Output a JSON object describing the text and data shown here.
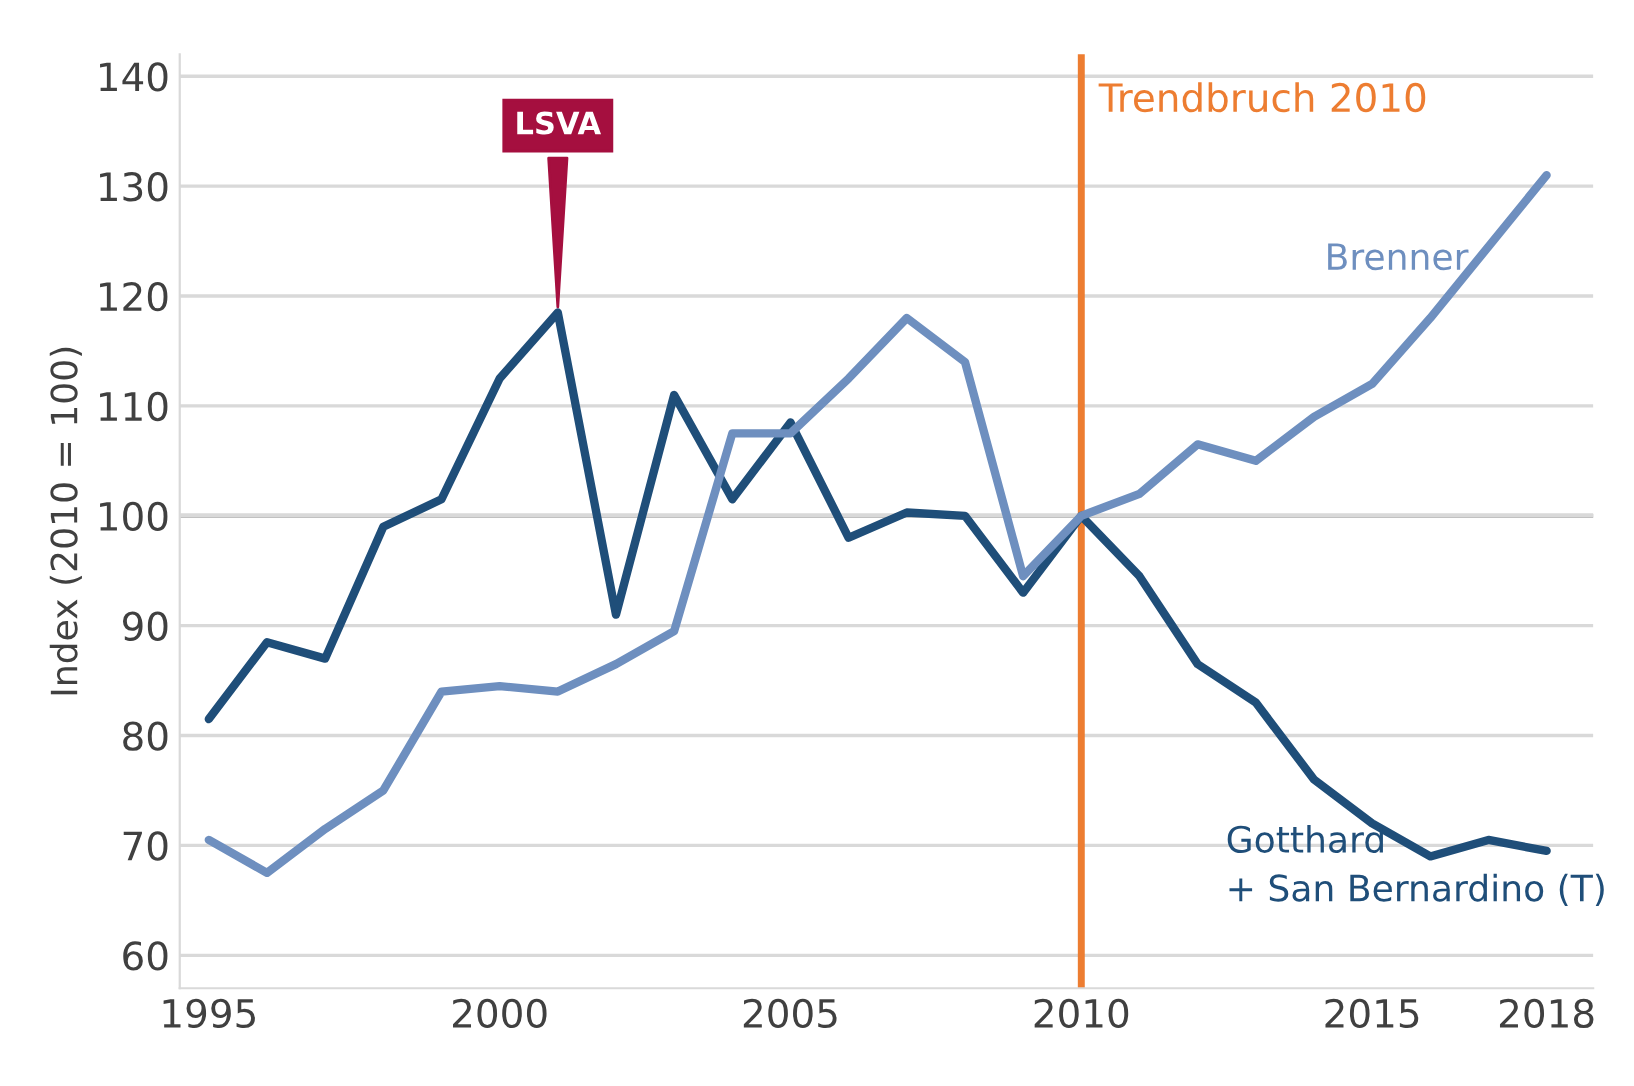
{
  "chart_data": {
    "type": "line",
    "ylabel": "Index (2010 = 100)",
    "x": [
      1995,
      1996,
      1997,
      1998,
      1999,
      2000,
      2001,
      2002,
      2003,
      2004,
      2005,
      2006,
      2007,
      2008,
      2009,
      2010,
      2011,
      2012,
      2013,
      2014,
      2015,
      2016,
      2017,
      2018
    ],
    "series": [
      {
        "name": "Gotthard\n+ San Bernardino (T)",
        "color": "#1f4e79",
        "values": [
          81.5,
          88.5,
          87,
          99,
          101.5,
          112.5,
          118.5,
          91,
          111,
          101.5,
          108.5,
          98,
          100.3,
          100,
          93,
          100,
          94.5,
          86.5,
          83,
          76,
          72,
          69,
          70.5,
          69.5
        ]
      },
      {
        "name": "Brenner",
        "color": "#6e8fbf",
        "values": [
          70.5,
          67.5,
          71.5,
          75,
          84,
          84.5,
          84,
          86.5,
          89.5,
          107.5,
          107.5,
          112.5,
          118,
          114,
          94.5,
          100,
          102,
          106.5,
          105,
          109,
          112,
          118,
          124.5,
          131
        ]
      }
    ],
    "xlim": [
      1994.5,
      2018.8
    ],
    "ylim": [
      57,
      142
    ],
    "xticks": [
      1995,
      2000,
      2005,
      2010,
      2015,
      2018
    ],
    "yticks": [
      60,
      70,
      80,
      90,
      100,
      110,
      120,
      130,
      140
    ],
    "grid": "y",
    "legend": false,
    "marker": "none",
    "line_style": "solid",
    "ref_lines": [
      {
        "axis": "x",
        "value": 2010,
        "label": "Trendbruch 2010",
        "color": "#ed7d31"
      },
      {
        "axis": "y",
        "value": 100,
        "color": "#8c8c8c"
      }
    ],
    "annotations": [
      {
        "text": "LSVA",
        "x": 2001,
        "y": 118.5
      }
    ]
  }
}
